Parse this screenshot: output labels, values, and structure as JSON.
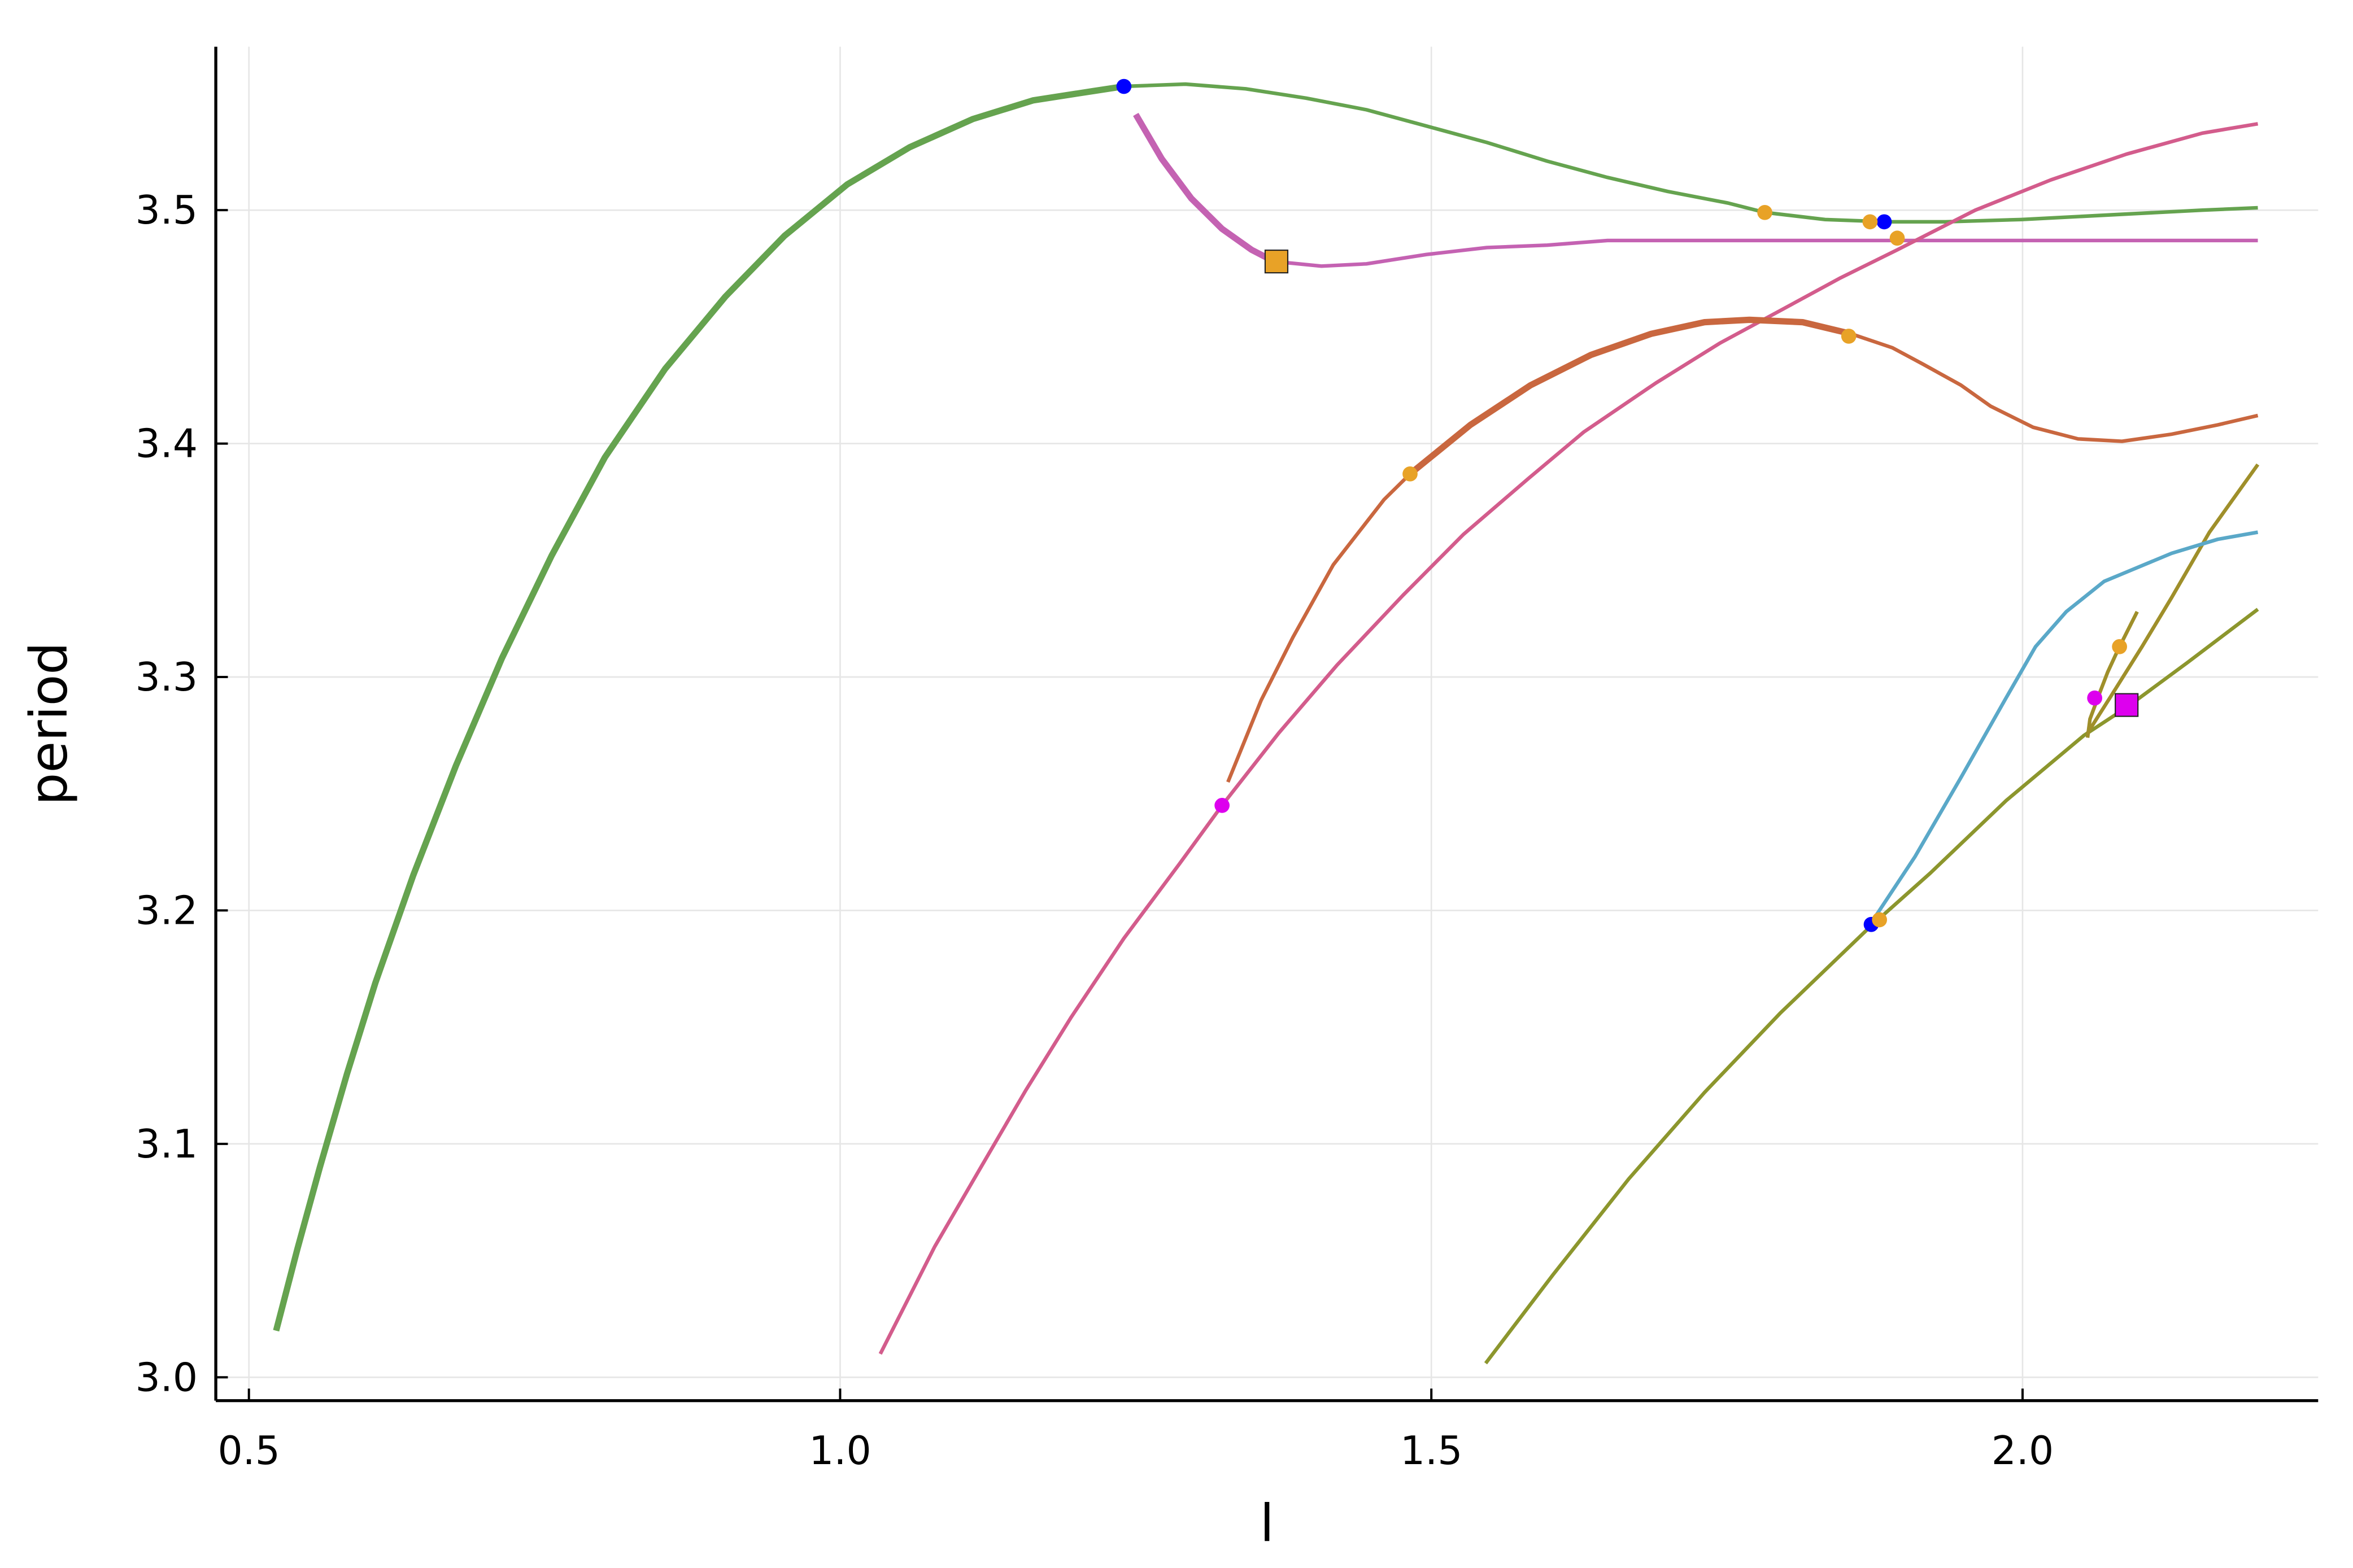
{
  "chart_data": {
    "type": "line",
    "title": "",
    "xlabel": "l",
    "ylabel": "period",
    "xlim": [
      0.472,
      2.25
    ],
    "ylim": [
      2.99,
      3.57
    ],
    "xticks": [
      "0.5",
      "1.0",
      "1.5",
      "2.0"
    ],
    "yticks": [
      "3.0",
      "3.1",
      "3.2",
      "3.3",
      "3.4",
      "3.5"
    ],
    "grid": true,
    "legend": "none",
    "series": [
      {
        "color": "#65a34f",
        "x": [
          0.523,
          0.541,
          0.56,
          0.583,
          0.607,
          0.639,
          0.675,
          0.714,
          0.756,
          0.801,
          0.852,
          0.903,
          0.953,
          1.006,
          1.059,
          1.112,
          1.163,
          1.214,
          1.24,
          1.292,
          1.343,
          1.394,
          1.445,
          1.496,
          1.547,
          1.598,
          1.649,
          1.7,
          1.751,
          1.782,
          1.833,
          1.884,
          1.935,
          1.999,
          2.075,
          2.152,
          2.199
        ],
        "y": [
          3.02,
          3.055,
          3.09,
          3.13,
          3.169,
          3.215,
          3.262,
          3.308,
          3.352,
          3.394,
          3.432,
          3.463,
          3.489,
          3.511,
          3.527,
          3.539,
          3.547,
          3.551,
          3.553,
          3.554,
          3.552,
          3.548,
          3.543,
          3.536,
          3.529,
          3.521,
          3.514,
          3.508,
          3.503,
          3.499,
          3.496,
          3.495,
          3.495,
          3.496,
          3.498,
          3.5,
          3.501
        ]
      },
      {
        "color": "#c462b2",
        "x": [
          1.25,
          1.272,
          1.297,
          1.323,
          1.348,
          1.367,
          1.407,
          1.445,
          1.496,
          1.547,
          1.598,
          1.649,
          1.726,
          1.82,
          1.894,
          2.075,
          2.199
        ],
        "y": [
          3.541,
          3.522,
          3.505,
          3.492,
          3.483,
          3.478,
          3.476,
          3.477,
          3.481,
          3.484,
          3.485,
          3.487,
          3.487,
          3.487,
          3.487,
          3.487,
          3.487
        ]
      },
      {
        "color": "#d35c8c",
        "x": [
          1.034,
          1.08,
          1.119,
          1.157,
          1.195,
          1.24,
          1.287,
          1.323,
          1.371,
          1.42,
          1.476,
          1.527,
          1.582,
          1.629,
          1.69,
          1.744,
          1.795,
          1.846,
          1.894,
          1.96,
          2.024,
          2.088,
          2.152,
          2.199
        ],
        "y": [
          3.01,
          3.056,
          3.09,
          3.123,
          3.154,
          3.188,
          3.22,
          3.245,
          3.276,
          3.305,
          3.335,
          3.361,
          3.385,
          3.405,
          3.426,
          3.443,
          3.457,
          3.471,
          3.483,
          3.5,
          3.513,
          3.524,
          3.533,
          3.537
        ]
      },
      {
        "color": "#c9673f",
        "x": [
          1.328,
          1.356,
          1.383,
          1.417,
          1.46,
          1.482,
          1.533,
          1.584,
          1.635,
          1.686,
          1.731,
          1.769,
          1.814,
          1.855,
          1.89,
          1.916,
          1.948,
          1.973,
          2.009,
          2.047,
          2.084,
          2.126,
          2.165,
          2.199
        ],
        "y": [
          3.255,
          3.29,
          3.317,
          3.348,
          3.376,
          3.387,
          3.408,
          3.425,
          3.438,
          3.447,
          3.452,
          3.453,
          3.452,
          3.447,
          3.441,
          3.434,
          3.425,
          3.416,
          3.407,
          3.402,
          3.401,
          3.404,
          3.408,
          3.412
        ]
      },
      {
        "color": "#8c962d",
        "x": [
          1.546,
          1.603,
          1.667,
          1.731,
          1.795,
          1.871,
          1.922,
          1.986,
          2.052,
          2.088,
          2.139,
          2.199
        ],
        "y": [
          3.006,
          3.044,
          3.085,
          3.122,
          3.156,
          3.193,
          3.216,
          3.247,
          3.275,
          3.287,
          3.306,
          3.329
        ]
      },
      {
        "color": "#9f8f2a",
        "x": [
          2.055,
          2.075,
          2.101,
          2.126,
          2.158,
          2.199
        ],
        "y": [
          3.276,
          3.292,
          3.313,
          3.334,
          3.362,
          3.391
        ]
      },
      {
        "color": "#9f8f2a",
        "x": [
          2.055,
          2.057,
          2.065,
          2.072,
          2.081,
          2.097
        ],
        "y": [
          3.274,
          3.282,
          3.293,
          3.302,
          3.312,
          3.328
        ]
      },
      {
        "color": "#5aa8c8",
        "x": [
          1.871,
          1.909,
          1.948,
          1.986,
          2.011,
          2.037,
          2.069,
          2.088,
          2.126,
          2.165,
          2.199
        ],
        "y": [
          3.194,
          3.223,
          3.257,
          3.291,
          3.313,
          3.328,
          3.341,
          3.345,
          3.353,
          3.359,
          3.362
        ]
      }
    ],
    "markers": [
      {
        "shape": "circle",
        "color": "#0000ff",
        "x": 1.24,
        "y": 3.553
      },
      {
        "shape": "circle",
        "color": "#0000ff",
        "x": 1.883,
        "y": 3.495
      },
      {
        "shape": "circle",
        "color": "#0000ff",
        "x": 1.872,
        "y": 3.194
      },
      {
        "shape": "circle",
        "color": "#e8a227",
        "x": 1.782,
        "y": 3.499
      },
      {
        "shape": "circle",
        "color": "#e8a227",
        "x": 1.871,
        "y": 3.495
      },
      {
        "shape": "circle",
        "color": "#e8a227",
        "x": 1.894,
        "y": 3.488
      },
      {
        "shape": "circle",
        "color": "#e8a227",
        "x": 1.853,
        "y": 3.446
      },
      {
        "shape": "circle",
        "color": "#e8a227",
        "x": 1.482,
        "y": 3.387
      },
      {
        "shape": "circle",
        "color": "#e8a227",
        "x": 1.879,
        "y": 3.196
      },
      {
        "shape": "circle",
        "color": "#e8a227",
        "x": 2.082,
        "y": 3.313
      },
      {
        "shape": "circle",
        "color": "#dd00ee",
        "x": 1.323,
        "y": 3.245
      },
      {
        "shape": "circle",
        "color": "#dd00ee",
        "x": 2.061,
        "y": 3.291
      },
      {
        "shape": "square",
        "color": "#e8a227",
        "x": 1.369,
        "y": 3.478
      },
      {
        "shape": "square",
        "color": "#dd00ee",
        "x": 2.088,
        "y": 3.288
      }
    ]
  }
}
